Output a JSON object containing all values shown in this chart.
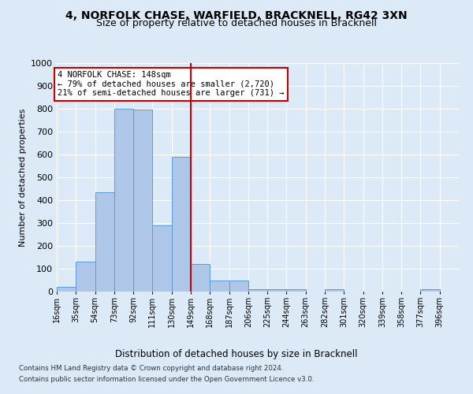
{
  "title": "4, NORFOLK CHASE, WARFIELD, BRACKNELL, RG42 3XN",
  "subtitle": "Size of property relative to detached houses in Bracknell",
  "xlabel": "Distribution of detached houses by size in Bracknell",
  "ylabel": "Number of detached properties",
  "footer_line1": "Contains HM Land Registry data © Crown copyright and database right 2024.",
  "footer_line2": "Contains public sector information licensed under the Open Government Licence v3.0.",
  "property_label": "4 NORFOLK CHASE: 148sqm",
  "annotation_line1": "← 79% of detached houses are smaller (2,720)",
  "annotation_line2": "21% of semi-detached houses are larger (731) →",
  "bin_labels": [
    "16sqm",
    "35sqm",
    "54sqm",
    "73sqm",
    "92sqm",
    "111sqm",
    "130sqm",
    "149sqm",
    "168sqm",
    "187sqm",
    "206sqm",
    "225sqm",
    "244sqm",
    "263sqm",
    "282sqm",
    "301sqm",
    "320sqm",
    "339sqm",
    "358sqm",
    "377sqm",
    "396sqm"
  ],
  "bin_edges": [
    16,
    35,
    54,
    73,
    92,
    111,
    130,
    149,
    168,
    187,
    206,
    225,
    244,
    263,
    282,
    301,
    320,
    339,
    358,
    377,
    396
  ],
  "bar_heights": [
    20,
    130,
    435,
    800,
    795,
    290,
    590,
    120,
    50,
    50,
    10,
    10,
    10,
    0,
    10,
    0,
    0,
    0,
    0,
    10
  ],
  "bar_color": "#aec6e8",
  "bar_edge_color": "#5b9bd5",
  "marker_line_color": "#cc0000",
  "marker_bin_index": 7,
  "ylim": [
    0,
    1000
  ],
  "yticks": [
    0,
    100,
    200,
    300,
    400,
    500,
    600,
    700,
    800,
    900,
    1000
  ],
  "bg_color": "#dce9f7",
  "plot_bg_color": "#dce9f7",
  "grid_color": "#ffffff",
  "annotation_box_color": "#ffffff",
  "annotation_box_edge": "#cc0000",
  "title_fontsize": 10,
  "subtitle_fontsize": 9
}
